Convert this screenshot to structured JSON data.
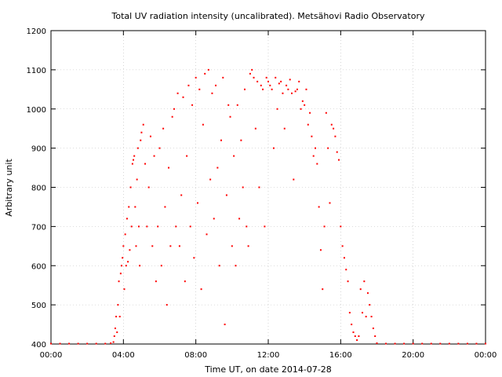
{
  "chart_data": {
    "type": "scatter",
    "title": "Total UV radiation intensity (uncalibrated). Metsähovi Radio Observatory",
    "xlabel": "Time UT, on date 2014-07-28",
    "ylabel": "Arbitrary unit",
    "xlim": [
      0,
      24
    ],
    "ylim": [
      400,
      1200
    ],
    "x_ticks": [
      0,
      4,
      8,
      12,
      16,
      20,
      24
    ],
    "x_tick_labels": [
      "00:00",
      "04:00",
      "08:00",
      "12:00",
      "16:00",
      "20:00",
      "00:00"
    ],
    "y_ticks": [
      400,
      500,
      600,
      700,
      800,
      900,
      1000,
      1100,
      1200
    ],
    "y_tick_labels": [
      "400",
      "500",
      "600",
      "700",
      "800",
      "900",
      "1000",
      "1100",
      "1200"
    ],
    "grid": true,
    "legend": "none",
    "marker_color": "#ff0000",
    "series": [
      {
        "values_x_hours": [
          0.0,
          0.5,
          1.0,
          1.5,
          2.0,
          2.5,
          3.0,
          3.3,
          3.45,
          3.5,
          3.55,
          3.6,
          3.65,
          3.7,
          3.75,
          3.8,
          3.85,
          3.9,
          3.95,
          4.0,
          4.05,
          4.1,
          4.15,
          4.2,
          4.25,
          4.3,
          4.35,
          4.4,
          4.45,
          4.5,
          4.55,
          4.6,
          4.65,
          4.7,
          4.75,
          4.8,
          4.85,
          4.9,
          4.95,
          5.0,
          5.1,
          5.2,
          5.3,
          5.4,
          5.5,
          5.6,
          5.7,
          5.8,
          5.9,
          6.0,
          6.1,
          6.2,
          6.3,
          6.4,
          6.5,
          6.6,
          6.7,
          6.8,
          6.9,
          7.0,
          7.1,
          7.2,
          7.3,
          7.4,
          7.5,
          7.6,
          7.7,
          7.8,
          7.9,
          8.0,
          8.1,
          8.2,
          8.3,
          8.4,
          8.5,
          8.6,
          8.7,
          8.8,
          8.9,
          9.0,
          9.1,
          9.2,
          9.3,
          9.4,
          9.5,
          9.6,
          9.7,
          9.8,
          9.9,
          10.0,
          10.1,
          10.2,
          10.3,
          10.4,
          10.5,
          10.6,
          10.7,
          10.8,
          10.9,
          11.0,
          11.1,
          11.2,
          11.3,
          11.4,
          11.5,
          11.6,
          11.7,
          11.8,
          11.9,
          12.0,
          12.1,
          12.2,
          12.3,
          12.4,
          12.5,
          12.6,
          12.7,
          12.8,
          12.9,
          13.0,
          13.1,
          13.2,
          13.3,
          13.4,
          13.5,
          13.6,
          13.7,
          13.8,
          13.9,
          14.0,
          14.1,
          14.2,
          14.3,
          14.4,
          14.5,
          14.6,
          14.7,
          14.8,
          14.9,
          15.0,
          15.1,
          15.2,
          15.3,
          15.4,
          15.5,
          15.6,
          15.7,
          15.8,
          15.9,
          16.0,
          16.1,
          16.2,
          16.3,
          16.4,
          16.5,
          16.6,
          16.7,
          16.8,
          16.9,
          17.0,
          17.1,
          17.2,
          17.3,
          17.4,
          17.5,
          17.6,
          17.7,
          17.8,
          17.9,
          18.0,
          18.5,
          19.0,
          19.5,
          20.0,
          20.5,
          21.0,
          21.5,
          22.0,
          22.5,
          23.0,
          23.5,
          24.0
        ],
        "values_y": [
          401,
          401,
          401,
          401,
          401,
          401,
          401,
          402,
          405,
          420,
          440,
          470,
          430,
          500,
          560,
          470,
          580,
          600,
          620,
          650,
          540,
          680,
          600,
          720,
          610,
          750,
          640,
          800,
          700,
          860,
          870,
          880,
          750,
          650,
          820,
          900,
          700,
          600,
          920,
          940,
          960,
          860,
          700,
          800,
          930,
          650,
          880,
          560,
          700,
          900,
          600,
          950,
          750,
          500,
          850,
          650,
          980,
          1000,
          700,
          1040,
          650,
          780,
          1030,
          560,
          880,
          1060,
          700,
          1010,
          620,
          1080,
          760,
          1050,
          540,
          960,
          1090,
          680,
          1100,
          820,
          1040,
          720,
          1060,
          850,
          600,
          920,
          1080,
          450,
          780,
          1010,
          980,
          650,
          880,
          600,
          1010,
          720,
          920,
          800,
          1050,
          700,
          650,
          1090,
          1100,
          1080,
          950,
          1070,
          800,
          1060,
          1050,
          700,
          1080,
          1070,
          1060,
          1050,
          900,
          1080,
          1000,
          1065,
          1070,
          1040,
          950,
          1060,
          1050,
          1075,
          1040,
          820,
          1045,
          1050,
          1070,
          1000,
          1020,
          1010,
          1050,
          960,
          990,
          930,
          880,
          900,
          860,
          750,
          640,
          540,
          700,
          990,
          900,
          760,
          960,
          950,
          930,
          890,
          870,
          700,
          650,
          620,
          590,
          560,
          480,
          450,
          430,
          420,
          410,
          420,
          540,
          480,
          560,
          470,
          530,
          500,
          470,
          440,
          420,
          402,
          401,
          401,
          401,
          401,
          401,
          401,
          401,
          401,
          401,
          401,
          401,
          401
        ]
      }
    ]
  }
}
